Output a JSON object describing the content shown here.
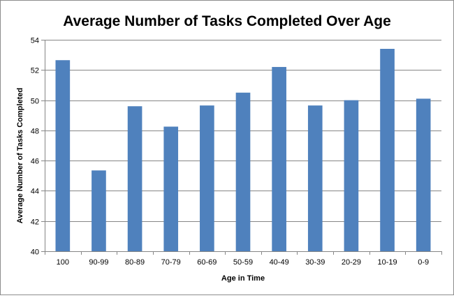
{
  "chart_data": {
    "type": "bar",
    "title": "Average Number of Tasks Completed Over Age",
    "xlabel": "Age in Time",
    "ylabel": "Average Number of Tasks Completed",
    "categories": [
      "100",
      "90-99",
      "80-89",
      "70-79",
      "60-69",
      "50-59",
      "40-49",
      "30-39",
      "20-29",
      "10-19",
      "0-9"
    ],
    "values": [
      52.65,
      45.35,
      49.6,
      48.25,
      49.65,
      50.5,
      52.2,
      49.65,
      50.0,
      53.4,
      50.1
    ],
    "ylim": [
      40,
      54
    ],
    "yticks": [
      "40",
      "42",
      "44",
      "46",
      "48",
      "50",
      "52",
      "54"
    ],
    "grid": true,
    "legend": "none",
    "colors": {
      "bar": "#4f81bd",
      "grid": "#868686",
      "axis": "#868686"
    }
  }
}
